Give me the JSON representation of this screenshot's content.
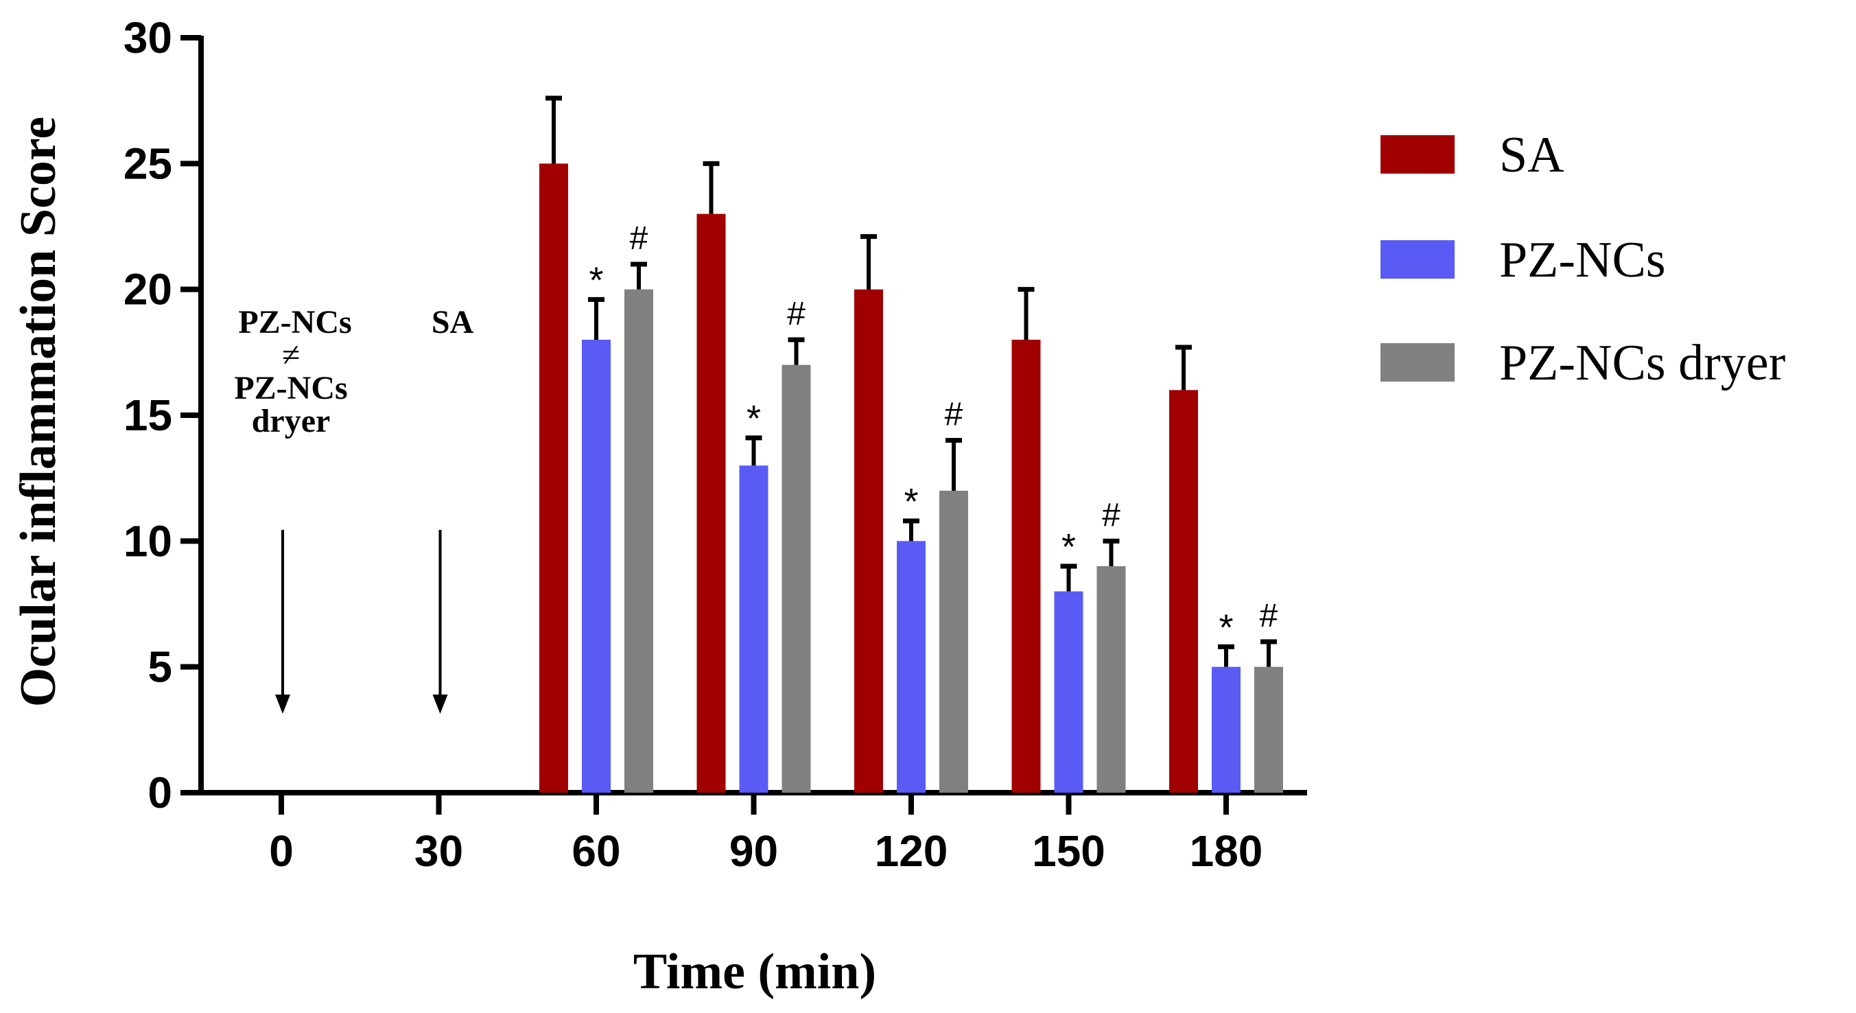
{
  "chart_data": {
    "type": "bar",
    "xlabel": "Time (min)",
    "ylabel": "Ocular inflammation Score",
    "ylim": [
      0,
      30
    ],
    "yticks": [
      "0",
      "5",
      "10",
      "15",
      "20",
      "25",
      "30"
    ],
    "categories": [
      "0",
      "30",
      "60",
      "90",
      "120",
      "150",
      "180"
    ],
    "series": [
      {
        "name": "SA",
        "color": "#a00000",
        "values": [
          null,
          null,
          25,
          23,
          20,
          18,
          16
        ],
        "errors": [
          null,
          null,
          2.6,
          2.0,
          2.1,
          2.0,
          1.7
        ]
      },
      {
        "name": "PZ-NCs",
        "color": "#5a5af5",
        "values": [
          null,
          null,
          18,
          13,
          10,
          8,
          5
        ],
        "errors": [
          null,
          null,
          1.6,
          1.1,
          0.8,
          1.0,
          0.8
        ],
        "marker": "*"
      },
      {
        "name": "PZ-NCs dryer",
        "color": "#808080",
        "values": [
          null,
          null,
          20,
          17,
          12,
          9,
          5
        ],
        "errors": [
          null,
          null,
          1.0,
          1.0,
          2.0,
          1.0,
          1.0
        ],
        "marker": "#"
      }
    ],
    "legend_position": "right",
    "annotations": [
      {
        "category": "0",
        "lines": [
          "PZ-NCs",
          "≠",
          "PZ-NCs",
          "dryer"
        ]
      },
      {
        "category": "30",
        "lines": [
          "SA"
        ]
      }
    ]
  }
}
